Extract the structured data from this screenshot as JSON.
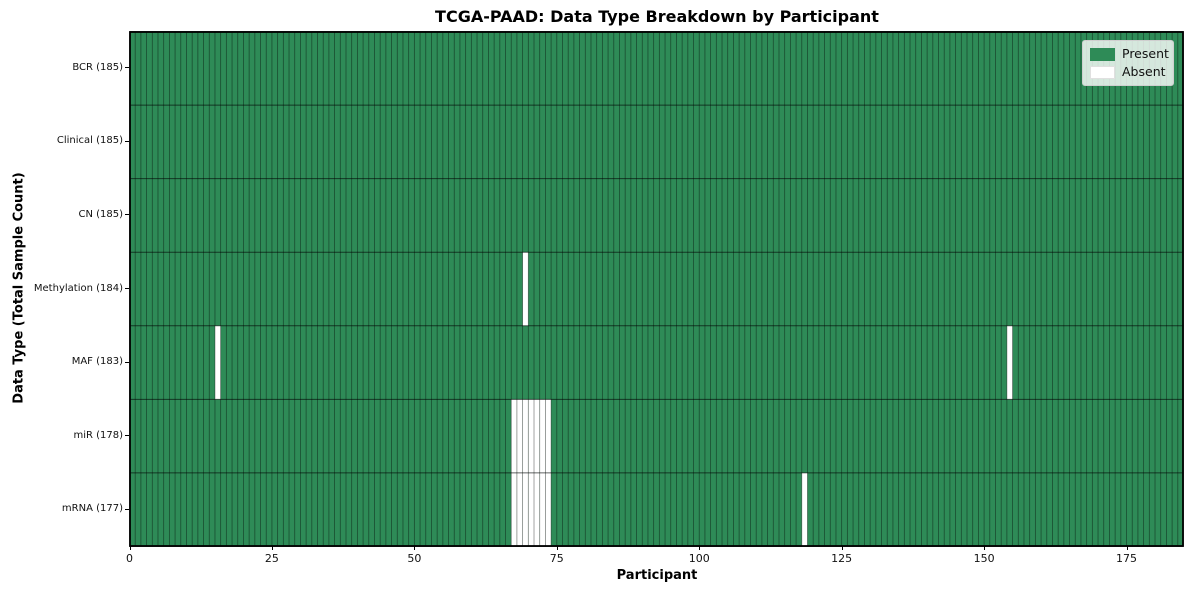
{
  "chart_data": {
    "type": "heatmap",
    "title": "TCGA-PAAD: Data Type Breakdown by Participant",
    "xlabel": "Participant",
    "ylabel": "Data Type (Total Sample Count)",
    "x_range": [
      0,
      185
    ],
    "x_ticks": [
      0,
      25,
      50,
      75,
      100,
      125,
      150,
      175
    ],
    "n_participants": 185,
    "grid": false,
    "rows": [
      {
        "label": "BCR (185)",
        "total": 185,
        "missing": []
      },
      {
        "label": "Clinical (185)",
        "total": 185,
        "missing": []
      },
      {
        "label": "CN (185)",
        "total": 185,
        "missing": []
      },
      {
        "label": "Methylation (184)",
        "total": 184,
        "missing": [
          69
        ]
      },
      {
        "label": "MAF (183)",
        "total": 183,
        "missing": [
          15,
          154
        ]
      },
      {
        "label": "miR (178)",
        "total": 178,
        "missing": [
          67,
          68,
          69,
          70,
          71,
          72,
          73
        ]
      },
      {
        "label": "mRNA (177)",
        "total": 177,
        "missing": [
          67,
          68,
          69,
          70,
          71,
          72,
          73,
          118
        ]
      }
    ],
    "legend": {
      "position": "upper right",
      "entries": [
        {
          "label": "Present",
          "color": "#2e8b57"
        },
        {
          "label": "Absent",
          "color": "#ffffff"
        }
      ]
    },
    "colors": {
      "present": "#2e8b57",
      "absent": "#ffffff",
      "cell_edge": "rgba(0,0,0,0.45)",
      "row_edge": "rgba(0,0,0,0.6)",
      "spine": "#000000",
      "text": "#111111"
    }
  }
}
